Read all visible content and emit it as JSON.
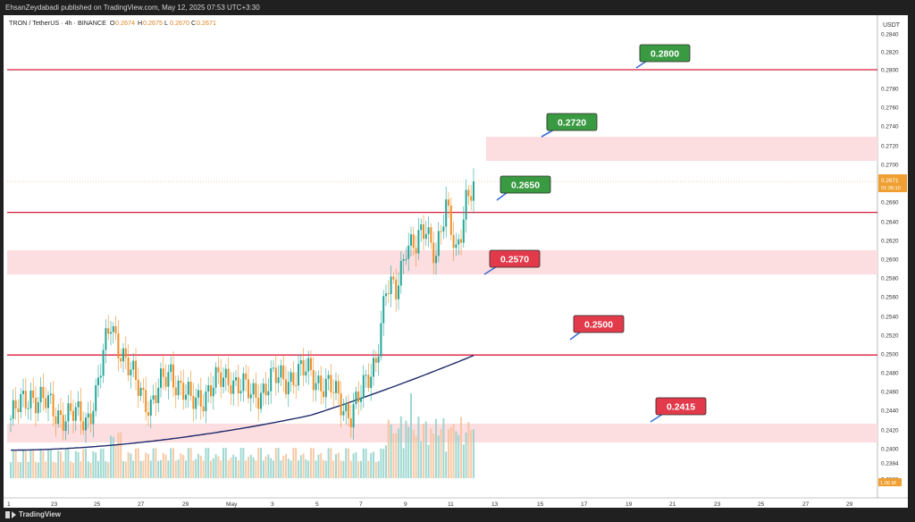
{
  "header": {
    "published_text": "EhsanZeydabadi published on TradingView.com, May 12, 2025 07:53 UTC+3:30"
  },
  "legend": {
    "symbol": "TRON / TetherUS · 4h · BINANCE",
    "o_label": "O",
    "o_value": "0.2674",
    "h_label": "H",
    "h_value": "0.2675",
    "l_label": "L",
    "l_value": "0.2670",
    "c_label": "C",
    "c_value": "0.2671"
  },
  "price_axis": {
    "currency": "USDT",
    "ticks": [
      "0.2840",
      "0.2820",
      "0.2800",
      "0.2780",
      "0.2760",
      "0.2740",
      "0.2720",
      "0.2700",
      "0.2680",
      "0.2660",
      "0.2640",
      "0.2620",
      "0.2600",
      "0.2580",
      "0.2560",
      "0.2540",
      "0.2520",
      "0.2500",
      "0.2480",
      "0.2460",
      "0.2440",
      "0.2420",
      "0.2400",
      "0.2384",
      "0.2368"
    ],
    "current_price": "0.2671",
    "countdown": "01:36:10",
    "volume_label": "1.06 M"
  },
  "time_axis": {
    "labels": [
      "1",
      "23",
      "25",
      "27",
      "29",
      "May",
      "3",
      "5",
      "7",
      "9",
      "11",
      "13",
      "15",
      "17",
      "19",
      "21",
      "23",
      "25",
      "27",
      "29"
    ]
  },
  "levels": [
    {
      "label": "0.2800",
      "value": 0.28,
      "kind": "line",
      "color": "#3a9a42"
    },
    {
      "label": "0.2720",
      "value": 0.272,
      "kind": "zone",
      "color": "#3a9a42"
    },
    {
      "label": "0.2650",
      "value": 0.265,
      "kind": "line",
      "color": "#3a9a42"
    },
    {
      "label": "0.2570",
      "value": 0.257,
      "kind": "zone",
      "color": "#e23a4a"
    },
    {
      "label": "0.2500",
      "value": 0.25,
      "kind": "line",
      "color": "#e23a4a"
    },
    {
      "label": "0.2415",
      "value": 0.2415,
      "kind": "zone",
      "color": "#e23a4a"
    }
  ],
  "colors": {
    "bull": "#26a69a",
    "bear": "#ef8f27",
    "level_line": "#d91e3c",
    "zone_fill": "#fcdde0",
    "ma_line": "#1f2a6b"
  },
  "footer": {
    "brand": "TradingView"
  }
}
